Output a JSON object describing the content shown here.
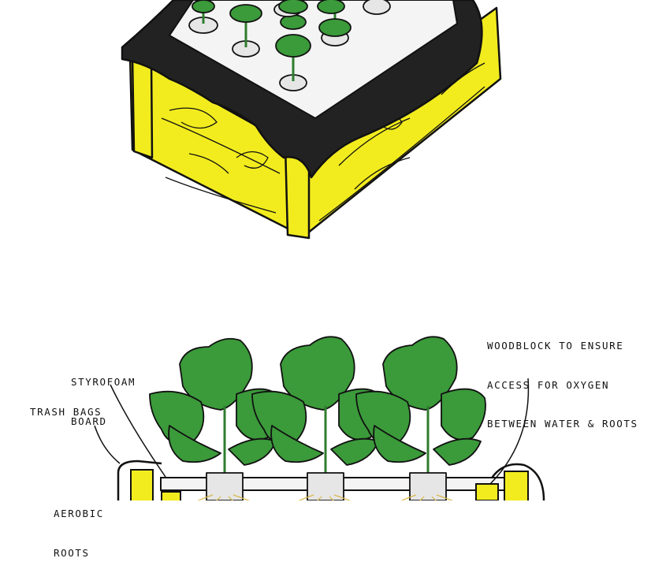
{
  "labels": {
    "styrofoam": [
      "STYROFOAM",
      "BOARD"
    ],
    "trash_bags": "TRASH BAGS",
    "aerobic": [
      "AEROBIC",
      "ROOTS"
    ],
    "woodblock": [
      "WOODBLOCK TO ENSURE",
      "ACCESS FOR OXYGEN",
      "BETWEEN WATER & ROOTS"
    ]
  },
  "colors": {
    "wood": "#f2ec1e",
    "liner": "#222222",
    "board": "#f4f4f4",
    "leaf": "#3b9a3a",
    "stem": "#2e7d2e",
    "pot": "#e6e6e6",
    "roots": "#f0d77a",
    "ink": "#111111"
  }
}
